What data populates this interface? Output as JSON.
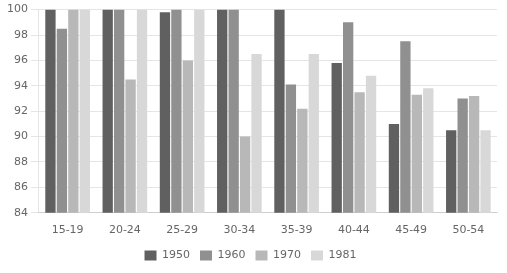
{
  "chart_data": {
    "type": "bar",
    "categories": [
      "15-19",
      "20-24",
      "25-29",
      "30-34",
      "35-39",
      "40-44",
      "45-49",
      "50-54"
    ],
    "series": [
      {
        "name": "1950",
        "color": "#606060",
        "values": [
          100.0,
          100.0,
          99.8,
          100.0,
          100.0,
          95.8,
          91.0,
          90.5
        ]
      },
      {
        "name": "1960",
        "color": "#909090",
        "values": [
          98.5,
          100.0,
          100.0,
          100.0,
          94.1,
          99.0,
          97.5,
          93.0
        ]
      },
      {
        "name": "1970",
        "color": "#b8b8b8",
        "values": [
          100.0,
          94.5,
          96.0,
          90.0,
          92.2,
          93.5,
          93.3,
          93.2
        ]
      },
      {
        "name": "1981",
        "color": "#d8d8d8",
        "values": [
          100.0,
          100.0,
          100.0,
          96.5,
          96.5,
          94.8,
          93.8,
          90.5
        ]
      }
    ],
    "ylim": [
      84,
      100
    ],
    "yticks": [
      84,
      86,
      88,
      90,
      92,
      94,
      96,
      98,
      100
    ],
    "grid": true,
    "legend": "bottom"
  }
}
